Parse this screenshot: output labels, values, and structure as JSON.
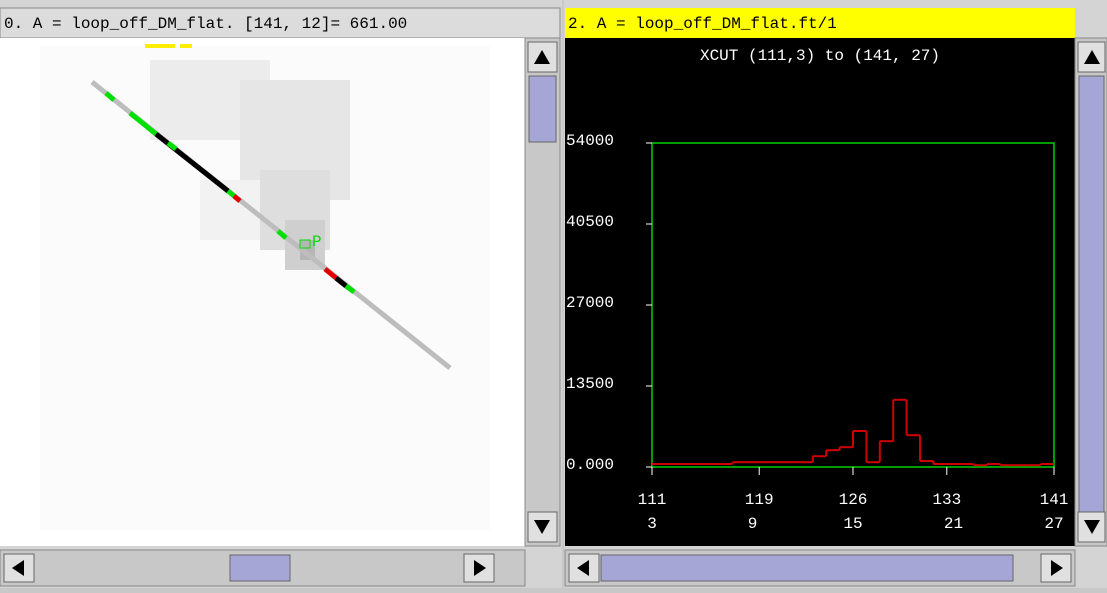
{
  "left_panel": {
    "title": "0. A = loop_off_DM_flat. [141, 12]=  661.00",
    "marker_label": "P"
  },
  "right_panel": {
    "title": "2. A = loop_off_DM_flat.ft/1"
  },
  "chart_data": {
    "type": "line",
    "drawstyle": "steps-post",
    "title": "XCUT (111,3) to (141, 27)",
    "x": [
      111,
      112,
      113,
      114,
      115,
      116,
      117,
      118,
      119,
      120,
      121,
      122,
      123,
      124,
      125,
      126,
      127,
      128,
      129,
      130,
      131,
      132,
      133,
      134,
      135,
      136,
      137,
      138,
      139,
      140,
      141
    ],
    "series": [
      {
        "color": "#d00000",
        "values": [
          500,
          500,
          500,
          500,
          500,
          500,
          800,
          800,
          800,
          800,
          800,
          800,
          1800,
          2800,
          3300,
          6000,
          800,
          4300,
          11200,
          5300,
          1000,
          500,
          500,
          500,
          300,
          500,
          300,
          300,
          300,
          500,
          500
        ]
      }
    ],
    "xlim": [
      111,
      141
    ],
    "xticks": [
      111,
      119,
      126,
      133,
      141
    ],
    "x2lim": [
      3,
      27
    ],
    "x2ticks": [
      3,
      9,
      15,
      21,
      27
    ],
    "ylim": [
      0,
      54000
    ],
    "yticks": [
      {
        "value": 0,
        "label": "0.000"
      },
      13500,
      27000,
      40500,
      54000
    ],
    "frame_color": "#00d000"
  }
}
